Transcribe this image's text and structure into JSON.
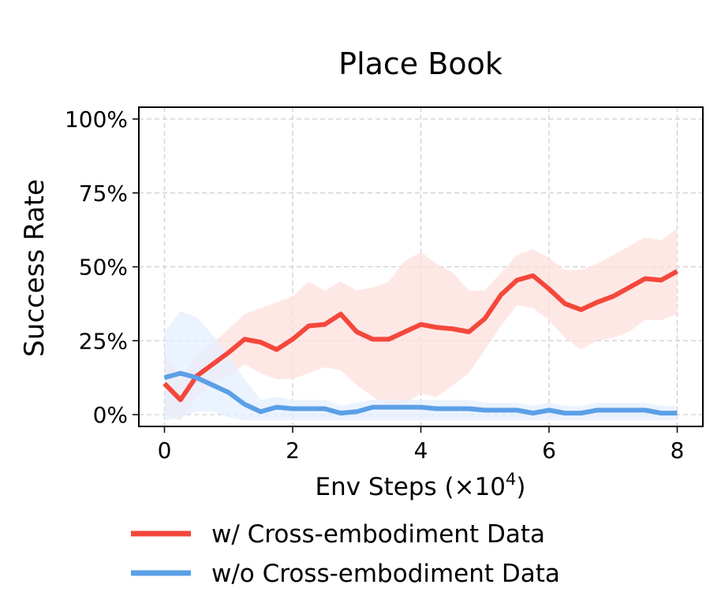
{
  "chart_data": {
    "type": "line",
    "title": "Place Book",
    "xlabel_main": "Env Steps (×10",
    "xlabel_exp": "4",
    "xlabel_close": ")",
    "ylabel": "Success Rate",
    "xlim": [
      -0.4,
      8.4
    ],
    "ylim": [
      -4,
      104
    ],
    "xticks": [
      0,
      2,
      4,
      6,
      8
    ],
    "xtick_labels": [
      "0",
      "2",
      "4",
      "6",
      "8"
    ],
    "yticks": [
      0,
      25,
      50,
      75,
      100
    ],
    "ytick_labels": [
      "0%",
      "25%",
      "50%",
      "75%",
      "100%"
    ],
    "grid": true,
    "legend_position": "below",
    "x": [
      0,
      0.25,
      0.5,
      0.75,
      1.0,
      1.25,
      1.5,
      1.75,
      2.0,
      2.25,
      2.5,
      2.75,
      3.0,
      3.25,
      3.5,
      3.75,
      4.0,
      4.25,
      4.5,
      4.75,
      5.0,
      5.25,
      5.5,
      5.75,
      6.0,
      6.25,
      6.5,
      6.75,
      7.0,
      7.25,
      7.5,
      7.75,
      8.0
    ],
    "series": [
      {
        "name": "w/ Cross-embodiment Data",
        "color": "#f5473b",
        "band_color": "#fde0de",
        "values": [
          10.5,
          5,
          13,
          17,
          21,
          25.5,
          24.5,
          22,
          25.5,
          30,
          30.5,
          34,
          28,
          25.5,
          25.5,
          28,
          30.5,
          29.5,
          29,
          28,
          32.5,
          40.5,
          45.5,
          47,
          42.5,
          37.5,
          35.5,
          38,
          40,
          43,
          46,
          45.5,
          48.5
        ],
        "lower": [
          0,
          -2,
          6,
          10,
          13,
          17,
          14,
          12,
          12,
          14,
          16,
          15,
          10,
          6,
          3,
          4,
          7,
          6,
          10,
          14,
          22,
          30,
          37,
          36,
          32,
          26,
          22,
          25,
          26,
          28,
          32,
          32,
          34
        ],
        "upper": [
          21,
          12,
          20,
          24,
          29,
          34,
          36,
          38,
          40,
          45,
          42,
          45,
          42,
          43,
          45,
          52,
          55,
          51,
          48,
          42,
          42,
          48,
          54,
          56,
          53,
          49,
          49,
          51,
          54,
          57,
          60,
          59,
          63
        ]
      },
      {
        "name": "w/o Cross-embodiment Data",
        "color": "#5b9fe6",
        "band_color": "#e4efff",
        "values": [
          12.5,
          14,
          12.5,
          10,
          7.5,
          3.5,
          1,
          2.5,
          2,
          2,
          2,
          0.5,
          1,
          2.5,
          2.5,
          2.5,
          2.5,
          2,
          2,
          2,
          1.5,
          1.5,
          1.5,
          0.5,
          1.5,
          0.5,
          0.5,
          1.5,
          1.5,
          1.5,
          1.5,
          0.5,
          0.5
        ],
        "lower": [
          -2,
          -1,
          1,
          1,
          -1,
          -2,
          -2,
          -2,
          -2,
          -2,
          -2,
          -2,
          -2,
          -2,
          -2,
          -2,
          -2,
          -2,
          -2,
          -2,
          -2,
          -2,
          -2,
          -2,
          -2,
          -2,
          -2,
          -2,
          -2,
          -2,
          -2,
          -2,
          -2
        ],
        "upper": [
          28,
          35,
          33,
          27,
          20,
          12,
          5,
          6,
          5,
          5,
          5,
          3,
          4,
          5,
          5,
          5,
          5,
          5,
          5,
          5,
          4,
          4,
          4,
          3,
          4,
          3,
          3,
          4,
          4,
          4,
          4,
          3,
          3
        ]
      }
    ]
  }
}
